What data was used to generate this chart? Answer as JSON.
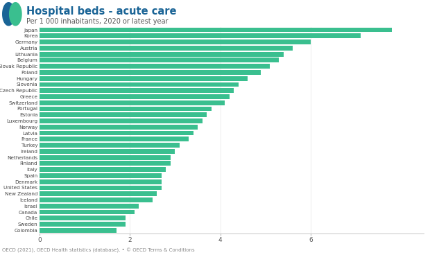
{
  "title": "Hospital beds - acute care",
  "subtitle": "Per 1 000 inhabitants, 2020 or latest year",
  "bar_color": "#3abf8f",
  "background_color": "#ffffff",
  "footer": "OECD (2021), OECD Health statistics (database). • © OECD Terms & Conditions",
  "categories": [
    "Japan",
    "Korea",
    "Germany",
    "Austria",
    "Lithuania",
    "Belgium",
    "Slovak Republic",
    "Poland",
    "Hungary",
    "Slovenia",
    "Czech Republic",
    "Greece",
    "Switzerland",
    "Portugal",
    "Estonia",
    "Luxembourg",
    "Norway",
    "Latvia",
    "France",
    "Turkey",
    "Ireland",
    "Netherlands",
    "Finland",
    "Italy",
    "Spain",
    "Denmark",
    "United States",
    "New Zealand",
    "Iceland",
    "Israel",
    "Canada",
    "Chile",
    "Sweden",
    "Colombia"
  ],
  "values": [
    7.8,
    7.1,
    6.0,
    5.6,
    5.4,
    5.3,
    5.1,
    4.9,
    4.6,
    4.4,
    4.3,
    4.2,
    4.1,
    3.8,
    3.7,
    3.6,
    3.5,
    3.4,
    3.3,
    3.1,
    3.0,
    2.9,
    2.9,
    2.8,
    2.7,
    2.7,
    2.7,
    2.6,
    2.5,
    2.2,
    2.1,
    1.9,
    1.9,
    1.7
  ],
  "xlim": [
    0,
    8.5
  ],
  "xticks": [
    0,
    2,
    4,
    6
  ],
  "title_color": "#1a6496",
  "title_fontsize": 10.5,
  "subtitle_fontsize": 7,
  "label_fontsize": 5.2,
  "tick_fontsize": 6.5,
  "footer_fontsize": 5.0,
  "logo_color1": "#1a6496",
  "logo_color2": "#3abf8f"
}
